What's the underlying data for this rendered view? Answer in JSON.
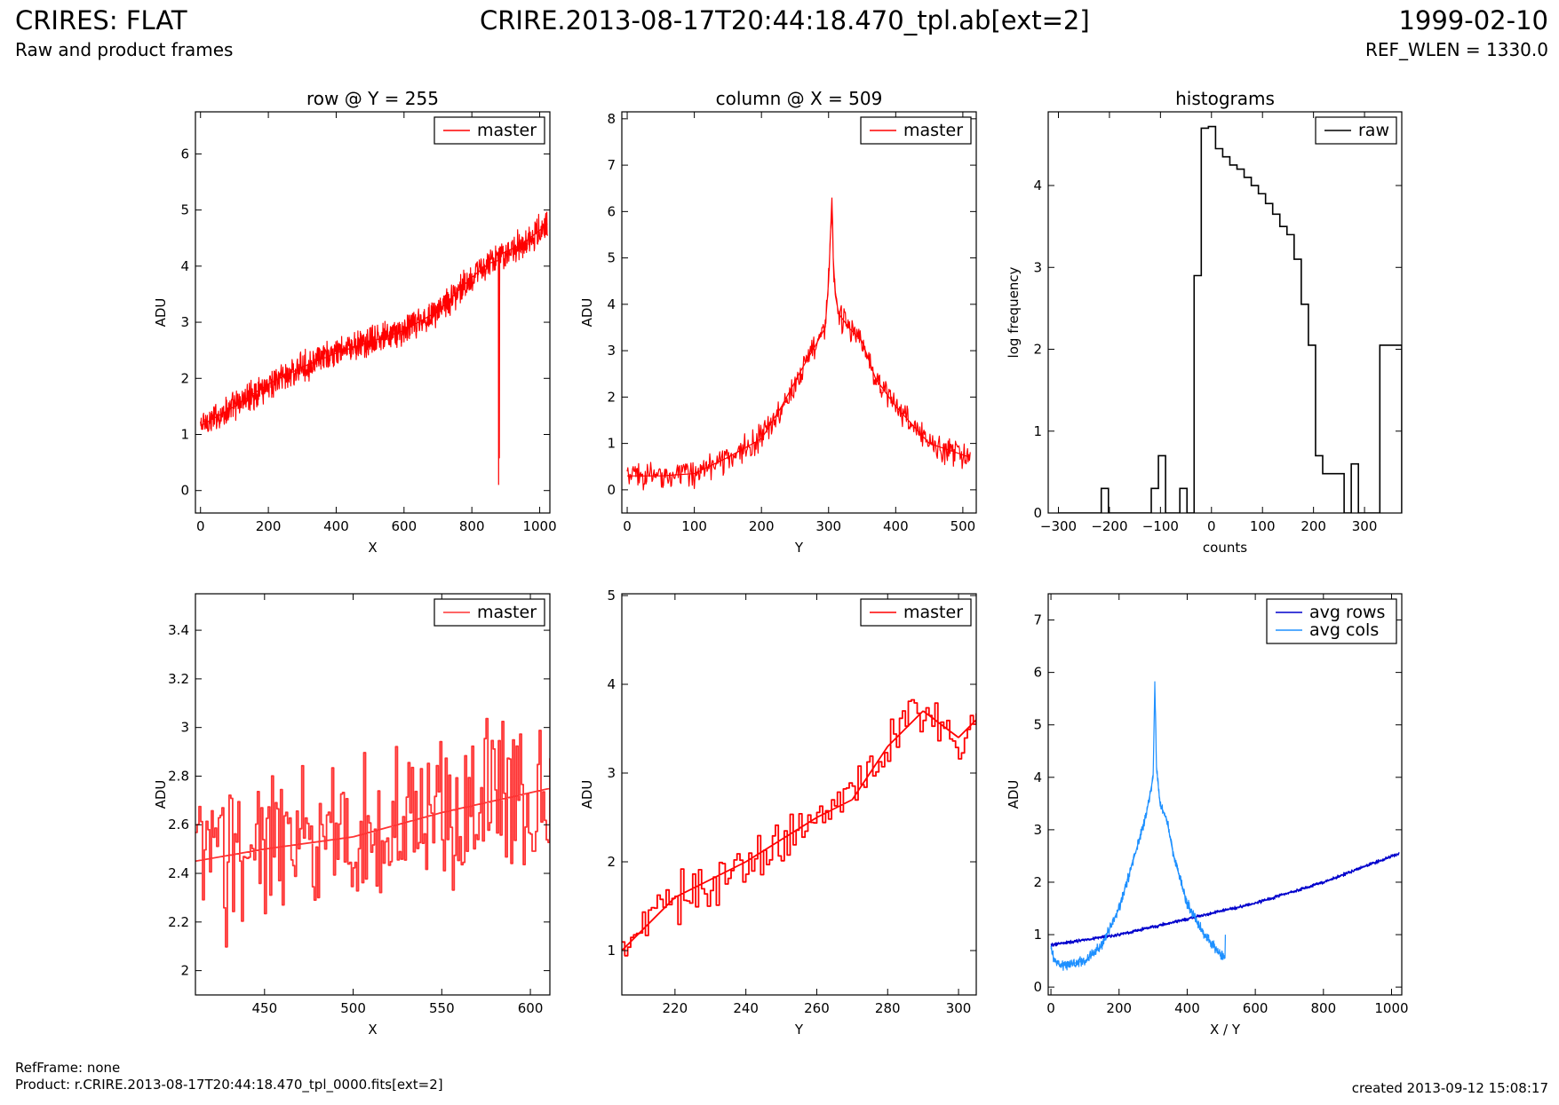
{
  "header": {
    "title_left": "CRIRES: FLAT",
    "subtitle_left": "Raw and product frames",
    "title_center": "CRIRE.2013-08-17T20:44:18.470_tpl.ab[ext=2]",
    "title_right": "1999-02-10",
    "subtitle_right": "REF_WLEN = 1330.0"
  },
  "footer": {
    "refframe": "RefFrame: none",
    "product": "Product: r.CRIRE.2013-08-17T20:44:18.470_tpl_0000.fits[ext=2]",
    "created": "created 2013-09-12 15:08:17"
  },
  "colors": {
    "master": "#ff0000",
    "master_zoom": "#ff3333",
    "raw": "#000000",
    "avg_rows": "#0000cc",
    "avg_cols": "#1e90ff"
  },
  "chart_data": [
    {
      "id": "row",
      "type": "line",
      "title": "row @ Y = 255",
      "xlabel": "X",
      "ylabel": "ADU",
      "xlim": [
        -15,
        1030
      ],
      "ylim": [
        -0.4,
        6.75
      ],
      "xticks": [
        0,
        200,
        400,
        600,
        800,
        1000
      ],
      "yticks": [
        0,
        1,
        2,
        3,
        4,
        5,
        6
      ],
      "legend": "top-right",
      "series": [
        {
          "name": "master",
          "color": "#ff0000",
          "x": [
            0,
            100,
            200,
            300,
            400,
            500,
            600,
            700,
            800,
            850,
            878,
            879,
            880,
            881,
            882,
            950,
            1023
          ],
          "y": [
            1.15,
            1.5,
            1.9,
            2.2,
            2.45,
            2.65,
            2.85,
            3.2,
            3.8,
            4.05,
            4.1,
            0.1,
            4.1,
            0.8,
            4.2,
            4.4,
            4.75
          ],
          "noise": 0.32
        }
      ]
    },
    {
      "id": "col",
      "type": "line",
      "title": "column @ X = 509",
      "xlabel": "Y",
      "ylabel": "ADU",
      "xlim": [
        -8,
        520
      ],
      "ylim": [
        -0.5,
        8.15
      ],
      "xticks": [
        0,
        100,
        200,
        300,
        400,
        500
      ],
      "yticks": [
        0,
        1,
        2,
        3,
        4,
        5,
        6,
        7,
        8
      ],
      "legend": "top-right",
      "series": [
        {
          "name": "master",
          "color": "#ff0000",
          "x": [
            0,
            50,
            100,
            150,
            200,
            230,
            260,
            280,
            295,
            300,
            305,
            307,
            310,
            315,
            330,
            350,
            370,
            400,
            450,
            511
          ],
          "y": [
            0.3,
            0.3,
            0.35,
            0.7,
            1.1,
            1.8,
            2.6,
            3.1,
            3.5,
            4.5,
            6.3,
            5.0,
            4.2,
            3.8,
            3.5,
            3.2,
            2.4,
            1.8,
            1.0,
            0.7
          ],
          "noise": 0.35
        }
      ]
    },
    {
      "id": "hist",
      "type": "histogram",
      "title": "histograms",
      "xlabel": "counts",
      "ylabel": "log frequency",
      "xlim": [
        -320,
        373
      ],
      "ylim": [
        0,
        4.9
      ],
      "xticks": [
        -300,
        -200,
        -100,
        0,
        100,
        200,
        300
      ],
      "yticks": [
        0,
        1,
        2,
        3,
        4
      ],
      "legend": "top-right",
      "series": [
        {
          "name": "raw",
          "color": "#000000",
          "bin_edges": [
            -300,
            -286,
            -272,
            -258,
            -244,
            -230,
            -216,
            -202,
            -188,
            -174,
            -160,
            -146,
            -132,
            -118,
            -104,
            -90,
            -76,
            -62,
            -48,
            -34,
            -20,
            -6,
            8,
            22,
            36,
            50,
            64,
            78,
            92,
            106,
            120,
            134,
            148,
            162,
            176,
            190,
            204,
            218,
            232,
            246,
            260,
            274,
            288,
            302,
            316,
            330,
            344,
            358,
            373
          ],
          "values": [
            0,
            0,
            0,
            0,
            0,
            0,
            0.3,
            0,
            0,
            0,
            0,
            0,
            0,
            0.3,
            0.7,
            0,
            0,
            0.3,
            0,
            2.9,
            4.7,
            4.72,
            4.45,
            4.35,
            4.25,
            4.2,
            4.1,
            4.0,
            3.9,
            3.78,
            3.65,
            3.5,
            3.4,
            3.1,
            2.55,
            2.05,
            0.7,
            0.48,
            0.48,
            0.48,
            0,
            0.6,
            0,
            0,
            0,
            2.05,
            2.05,
            2.05
          ]
        }
      ]
    },
    {
      "id": "row-zoom",
      "type": "line",
      "title": "",
      "xlabel": "X",
      "ylabel": "ADU",
      "xlim": [
        411,
        611
      ],
      "ylim": [
        1.9,
        3.55
      ],
      "xticks": [
        450,
        500,
        550,
        600
      ],
      "yticks": [
        2.0,
        2.2,
        2.4,
        2.6,
        2.8,
        3.0,
        3.2,
        3.4
      ],
      "legend": "top-right",
      "series": [
        {
          "name": "master",
          "color": "#ff3333",
          "x": [
            411,
            450,
            500,
            550,
            611
          ],
          "y": [
            2.45,
            2.5,
            2.55,
            2.65,
            2.75
          ],
          "noise": 0.4
        }
      ]
    },
    {
      "id": "col-zoom",
      "type": "line",
      "title": "",
      "xlabel": "Y",
      "ylabel": "ADU",
      "xlim": [
        205,
        305
      ],
      "ylim": [
        0.5,
        5.02
      ],
      "xticks": [
        220,
        240,
        260,
        280,
        300
      ],
      "yticks": [
        1,
        2,
        3,
        4,
        5
      ],
      "legend": "top-right",
      "series": [
        {
          "name": "master",
          "color": "#ff0000",
          "x": [
            205,
            220,
            240,
            260,
            270,
            280,
            290,
            300,
            305
          ],
          "y": [
            1.0,
            1.6,
            2.0,
            2.5,
            2.7,
            3.3,
            3.7,
            3.4,
            3.6
          ],
          "noise": 0.35
        }
      ]
    },
    {
      "id": "avg",
      "type": "line",
      "title": "",
      "xlabel": "X / Y",
      "ylabel": "ADU",
      "xlim": [
        -8,
        1030
      ],
      "ylim": [
        -0.15,
        7.5
      ],
      "xticks": [
        0,
        200,
        400,
        600,
        800,
        1000
      ],
      "yticks": [
        0,
        1,
        2,
        3,
        4,
        5,
        6,
        7
      ],
      "legend": "top-right",
      "series": [
        {
          "name": "avg rows",
          "color": "#0000cc",
          "x": [
            0,
            200,
            400,
            600,
            800,
            1023
          ],
          "y": [
            0.8,
            1.0,
            1.3,
            1.6,
            2.0,
            2.55
          ],
          "noise": 0.04
        },
        {
          "name": "avg cols",
          "color": "#1e90ff",
          "x": [
            0,
            10,
            30,
            100,
            150,
            200,
            250,
            280,
            300,
            305,
            310,
            320,
            340,
            360,
            400,
            450,
            500,
            511,
            512
          ],
          "y": [
            0.75,
            0.5,
            0.4,
            0.5,
            0.8,
            1.5,
            2.6,
            3.3,
            4.0,
            5.8,
            4.2,
            3.5,
            3.2,
            2.5,
            1.6,
            1.0,
            0.6,
            0.55,
            1.0
          ],
          "noise": 0.12
        }
      ]
    }
  ]
}
